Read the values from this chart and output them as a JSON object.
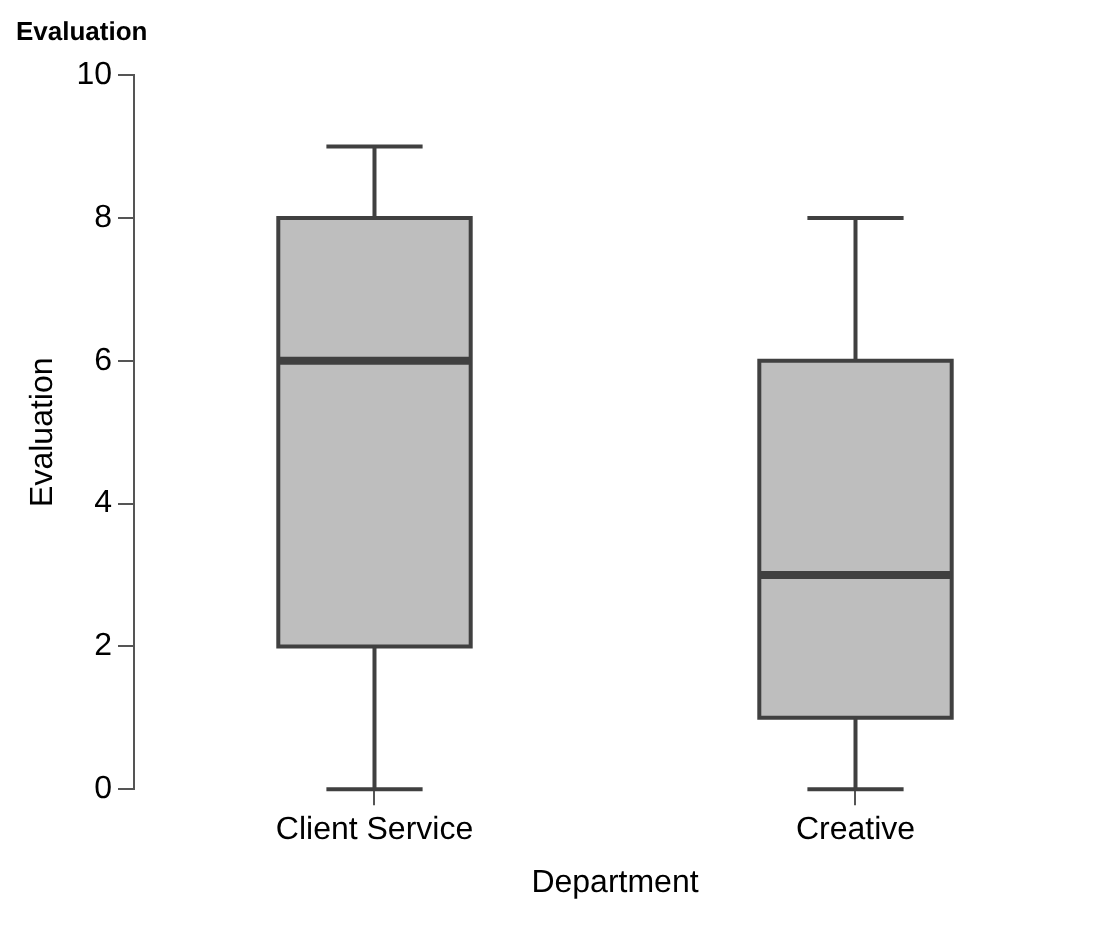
{
  "chart_data": {
    "type": "box",
    "title": "Evaluation",
    "xlabel": "Department",
    "ylabel": "Evaluation",
    "categories": [
      "Client Service",
      "Creative"
    ],
    "boxes": [
      {
        "low": 0,
        "q1": 2,
        "median": 6,
        "q3": 8,
        "high": 9
      },
      {
        "low": 0,
        "q1": 1,
        "median": 3,
        "q3": 6,
        "high": 8
      }
    ],
    "color": "#bebebe",
    "ylim": [
      0,
      10
    ],
    "yticks": [
      0,
      2,
      4,
      6,
      8,
      10
    ],
    "grid": false,
    "legend": false
  }
}
